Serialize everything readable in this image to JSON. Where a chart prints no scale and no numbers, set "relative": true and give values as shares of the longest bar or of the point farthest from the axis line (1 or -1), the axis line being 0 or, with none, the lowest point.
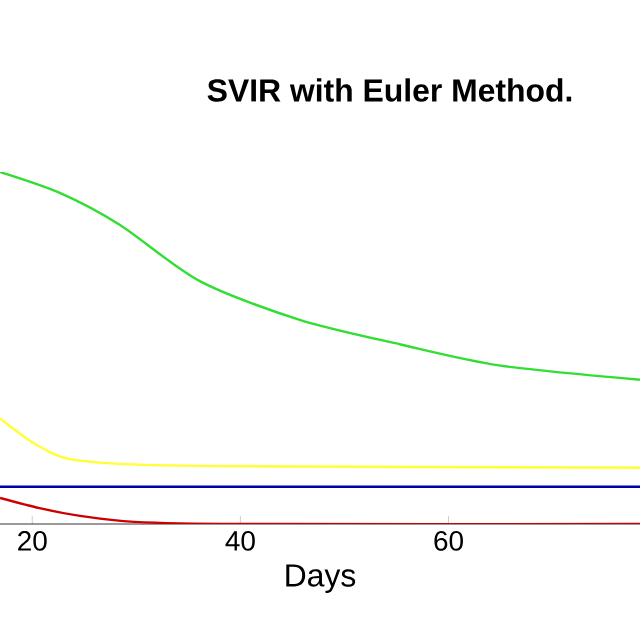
{
  "chart_data": {
    "type": "line",
    "title": "SVIR with Euler Method.",
    "xlabel": "Days",
    "relative": true,
    "xlim": [
      16.9,
      78.4
    ],
    "xticks": [
      20,
      40,
      60
    ],
    "grid": false,
    "marker": "none",
    "line_style": "solid",
    "series": [
      {
        "color": "#33dd33",
        "x": [
          16.9,
          22.7,
          28.4,
          36.1,
          45.7,
          55.4,
          65,
          78.4
        ],
        "values": [
          1.0,
          0.94,
          0.85,
          0.69,
          0.58,
          0.51,
          0.45,
          0.41
        ]
      },
      {
        "color": "#ffff33",
        "x": [
          16.9,
          20.7,
          24.6,
          36.1,
          78.4
        ],
        "values": [
          0.3,
          0.22,
          0.18,
          0.165,
          0.16
        ]
      },
      {
        "color": "#0000aa",
        "x": [
          16.9,
          78.4
        ],
        "values": [
          0.106,
          0.106
        ]
      },
      {
        "color": "#cc0000",
        "x": [
          16.9,
          20.7,
          24.6,
          29.8,
          40,
          78.4
        ],
        "values": [
          0.074,
          0.045,
          0.023,
          0.006,
          0,
          0
        ]
      }
    ]
  }
}
